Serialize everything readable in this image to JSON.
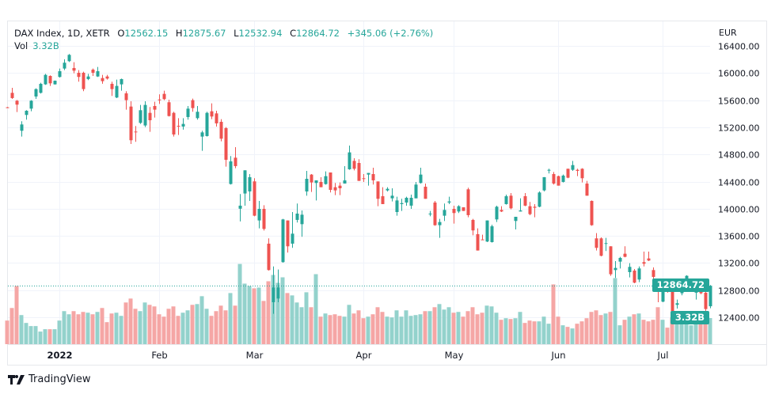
{
  "header": {
    "symbol_line": "DAX Index, 1D, XETR",
    "o_label": "O",
    "o": "12562.15",
    "h_label": "H",
    "h": "12875.67",
    "l_label": "L",
    "l": "12532.94",
    "c_label": "C",
    "c": "12864.72",
    "change": "+345.06 (+2.76%)",
    "vol_label": "Vol",
    "vol": "3.32B"
  },
  "price_axis": {
    "currency": "EUR",
    "last_price": "12864.72",
    "last_volume": "3.32B"
  },
  "footer": {
    "logo_text": "TradingView"
  },
  "chart_data": {
    "type": "candlestick",
    "title": "DAX Index, 1D, XETR",
    "ylabel": "EUR",
    "ylim": [
      12400,
      16400
    ],
    "grid": true,
    "colors": {
      "up": "#26a69a",
      "down": "#ef5350",
      "up_volume": "#93d2cc",
      "down_volume": "#f5a6a5"
    },
    "yticks": [
      "16400.00",
      "16000.00",
      "15600.00",
      "15200.00",
      "14800.00",
      "14400.00",
      "14000.00",
      "13600.00",
      "13200.00",
      "12800.00",
      "12400.00"
    ],
    "xticks": [
      {
        "label": "2022",
        "index": 12,
        "bold": true
      },
      {
        "label": "Feb",
        "index": 33
      },
      {
        "label": "Mar",
        "index": 53
      },
      {
        "label": "Apr",
        "index": 76
      },
      {
        "label": "May",
        "index": 95
      },
      {
        "label": "Jun",
        "index": 117
      },
      {
        "label": "Jul",
        "index": 139
      }
    ],
    "candle_fields": [
      "open",
      "high",
      "low",
      "close",
      "volume_B"
    ],
    "candles": [
      [
        15495,
        15500,
        15485,
        15490,
        3.0
      ],
      [
        15708,
        15782,
        15619,
        15631,
        4.6
      ],
      [
        15592,
        15603,
        15425,
        15534,
        7.4
      ],
      [
        15149,
        15289,
        15063,
        15242,
        3.7
      ],
      [
        15382,
        15452,
        15312,
        15444,
        2.7
      ],
      [
        15475,
        15600,
        15436,
        15592,
        2.3
      ],
      [
        15654,
        15775,
        15619,
        15763,
        2.3
      ],
      [
        15708,
        15856,
        15697,
        15841,
        1.6
      ],
      [
        15833,
        15988,
        15825,
        15973,
        1.9
      ],
      [
        15957,
        15965,
        15810,
        15848,
        1.9
      ],
      [
        15833,
        15890,
        15830,
        15887,
        1.9
      ],
      [
        15942,
        16066,
        15934,
        16027,
        3.0
      ],
      [
        16066,
        16202,
        16043,
        16152,
        4.2
      ],
      [
        16175,
        16280,
        16163,
        16268,
        3.8
      ],
      [
        16074,
        16159,
        15996,
        16035,
        4.2
      ],
      [
        16004,
        16043,
        15872,
        15942,
        3.8
      ],
      [
        16004,
        16019,
        15732,
        15763,
        4.1
      ],
      [
        15911,
        15988,
        15895,
        15949,
        4.0
      ],
      [
        16050,
        16066,
        15957,
        16004,
        3.8
      ],
      [
        15949,
        16089,
        15942,
        16027,
        4.1
      ],
      [
        15926,
        15973,
        15841,
        15880,
        4.6
      ],
      [
        15949,
        15973,
        15903,
        15918,
        2.8
      ],
      [
        15841,
        15872,
        15662,
        15763,
        3.9
      ],
      [
        15639,
        15903,
        15631,
        15810,
        4.0
      ],
      [
        15833,
        15918,
        15740,
        15911,
        3.6
      ],
      [
        15701,
        15732,
        15460,
        15600,
        5.3
      ],
      [
        15506,
        15584,
        14954,
        15009,
        5.8
      ],
      [
        15137,
        15219,
        14986,
        15130,
        4.5
      ],
      [
        15265,
        15530,
        15250,
        15452,
        4.2
      ],
      [
        15227,
        15584,
        15203,
        15530,
        5.3
      ],
      [
        15413,
        15499,
        15133,
        15304,
        5.0
      ],
      [
        15514,
        15576,
        15343,
        15460,
        4.8
      ],
      [
        15610,
        15685,
        15545,
        15607,
        3.8
      ],
      [
        15693,
        15739,
        15600,
        15615,
        3.5
      ],
      [
        15569,
        15607,
        15359,
        15366,
        4.5
      ],
      [
        15413,
        15429,
        15063,
        15094,
        4.8
      ],
      [
        15222,
        15335,
        15087,
        15219,
        3.6
      ],
      [
        15211,
        15335,
        15165,
        15250,
        4.0
      ],
      [
        15351,
        15514,
        15312,
        15475,
        4.3
      ],
      [
        15600,
        15623,
        15429,
        15483,
        5.0
      ],
      [
        15335,
        15514,
        15312,
        15429,
        5.1
      ],
      [
        15063,
        15149,
        14853,
        15125,
        6.1
      ],
      [
        15071,
        15429,
        15063,
        15413,
        4.5
      ],
      [
        15436,
        15553,
        15320,
        15359,
        3.6
      ],
      [
        15405,
        15444,
        15211,
        15258,
        4.2
      ],
      [
        15281,
        15320,
        14993,
        15032,
        4.9
      ],
      [
        15188,
        15203,
        14620,
        14721,
        4.3
      ],
      [
        14364,
        14776,
        14356,
        14698,
        6.5
      ],
      [
        14752,
        14908,
        14597,
        14628,
        4.9
      ],
      [
        14000,
        14216,
        13812,
        14045,
        10.2
      ],
      [
        14224,
        14566,
        14045,
        14566,
        7.7
      ],
      [
        14255,
        14511,
        14115,
        14465,
        7.4
      ],
      [
        14403,
        14449,
        13889,
        13897,
        7.1
      ],
      [
        13827,
        14115,
        13710,
        13998,
        7.2
      ],
      [
        13998,
        14052,
        13679,
        13702,
        5.5
      ],
      [
        13485,
        13563,
        13088,
        13096,
        8.0
      ],
      [
        12622,
        13150,
        12451,
        12840,
        8.8
      ],
      [
        12676,
        13104,
        12622,
        12840,
        7.8
      ],
      [
        13213,
        13850,
        13205,
        13842,
        8.5
      ],
      [
        13827,
        13827,
        13353,
        13446,
        6.5
      ],
      [
        13485,
        13951,
        13423,
        13632,
        6.2
      ],
      [
        13835,
        14076,
        13796,
        13928,
        5.3
      ],
      [
        13772,
        13974,
        13586,
        13912,
        4.7
      ],
      [
        14254,
        14558,
        14192,
        14441,
        6.6
      ],
      [
        14503,
        14511,
        14247,
        14387,
        4.7
      ],
      [
        14379,
        14418,
        14122,
        14418,
        8.9
      ],
      [
        14395,
        14464,
        14317,
        14317,
        3.5
      ],
      [
        14363,
        14550,
        14355,
        14480,
        3.9
      ],
      [
        14534,
        14534,
        14239,
        14278,
        3.7
      ],
      [
        14317,
        14379,
        14200,
        14270,
        3.8
      ],
      [
        14340,
        14387,
        14200,
        14301,
        3.6
      ],
      [
        14371,
        14628,
        14371,
        14418,
        3.5
      ],
      [
        14581,
        14931,
        14573,
        14830,
        5.0
      ],
      [
        14705,
        14744,
        14565,
        14589,
        3.9
      ],
      [
        14674,
        14729,
        14410,
        14410,
        4.3
      ],
      [
        14449,
        14511,
        14394,
        14448,
        3.3
      ],
      [
        14503,
        14527,
        14340,
        14527,
        3.5
      ],
      [
        14511,
        14604,
        14356,
        14418,
        3.8
      ],
      [
        14402,
        14402,
        14037,
        14146,
        4.7
      ],
      [
        14184,
        14317,
        14068,
        14068,
        4.1
      ],
      [
        14270,
        14317,
        14254,
        14293,
        3.5
      ],
      [
        14153,
        14301,
        14107,
        14192,
        3.4
      ],
      [
        13951,
        14177,
        13897,
        14122,
        4.3
      ],
      [
        14068,
        14146,
        13967,
        14083,
        3.5
      ],
      [
        14091,
        14177,
        14045,
        14161,
        4.3
      ],
      [
        14045,
        14208,
        13998,
        14161,
        3.6
      ],
      [
        14153,
        14394,
        14153,
        14356,
        3.7
      ],
      [
        14379,
        14604,
        14371,
        14503,
        3.8
      ],
      [
        14324,
        14371,
        14146,
        14146,
        4.2
      ],
      [
        13920,
        13967,
        13889,
        13928,
        4.2
      ],
      [
        14091,
        14115,
        13749,
        13757,
        4.7
      ],
      [
        13757,
        13850,
        13570,
        13804,
        5.1
      ],
      [
        13897,
        14076,
        13819,
        13982,
        4.4
      ],
      [
        14091,
        14177,
        14068,
        14107,
        4.7
      ],
      [
        13998,
        14045,
        13780,
        13936,
        4.0
      ],
      [
        13959,
        14052,
        13936,
        14037,
        4.1
      ],
      [
        14021,
        14021,
        13967,
        13967,
        3.5
      ],
      [
        14286,
        14309,
        13874,
        13905,
        4.2
      ],
      [
        13835,
        13850,
        13609,
        13680,
        4.7
      ],
      [
        13625,
        13710,
        13384,
        13384,
        3.8
      ],
      [
        13547,
        13617,
        13539,
        13546,
        4.0
      ],
      [
        13516,
        13827,
        13508,
        13827,
        4.9
      ],
      [
        13508,
        13765,
        13500,
        13741,
        4.8
      ],
      [
        13842,
        14045,
        13804,
        14029,
        4.0
      ],
      [
        13982,
        14037,
        13951,
        13959,
        3.1
      ],
      [
        14068,
        14208,
        14060,
        14184,
        3.3
      ],
      [
        14192,
        14231,
        13990,
        14006,
        3.2
      ],
      [
        13819,
        13881,
        13695,
        13881,
        3.3
      ],
      [
        13959,
        14153,
        13959,
        13975,
        4.1
      ],
      [
        14185,
        14231,
        14037,
        14045,
        2.7
      ],
      [
        14037,
        14099,
        13905,
        13920,
        3.0
      ],
      [
        14029,
        14068,
        13874,
        14014,
        2.9
      ],
      [
        14029,
        14255,
        14021,
        14239,
        2.9
      ],
      [
        14270,
        14465,
        14255,
        14465,
        3.5
      ],
      [
        14566,
        14589,
        14519,
        14573,
        2.6
      ],
      [
        14511,
        14542,
        14356,
        14371,
        7.6
      ],
      [
        14480,
        14488,
        14340,
        14340,
        3.5
      ],
      [
        14395,
        14503,
        14387,
        14488,
        2.4
      ],
      [
        14589,
        14589,
        14449,
        14457,
        2.2
      ],
      [
        14573,
        14705,
        14558,
        14643,
        2.0
      ],
      [
        14573,
        14589,
        14480,
        14558,
        2.6
      ],
      [
        14589,
        14597,
        14387,
        14449,
        2.9
      ],
      [
        14371,
        14410,
        14192,
        14192,
        3.3
      ],
      [
        14115,
        14122,
        13749,
        13757,
        4.1
      ],
      [
        13563,
        13640,
        13384,
        13423,
        4.3
      ],
      [
        13563,
        13578,
        13298,
        13306,
        3.7
      ],
      [
        13485,
        13570,
        13376,
        13493,
        3.9
      ],
      [
        13446,
        13446,
        13011,
        13034,
        4.1
      ],
      [
        13096,
        13228,
        12980,
        13127,
        8.4
      ],
      [
        13220,
        13291,
        13119,
        13275,
        2.4
      ],
      [
        13337,
        13446,
        13283,
        13291,
        3.1
      ],
      [
        13065,
        13197,
        12988,
        13143,
        3.5
      ],
      [
        13088,
        13112,
        12902,
        12910,
        3.8
      ],
      [
        12956,
        13150,
        12917,
        13120,
        3.9
      ],
      [
        13213,
        13368,
        13150,
        13189,
        3.1
      ],
      [
        13267,
        13368,
        13228,
        13236,
        2.9
      ],
      [
        13096,
        13135,
        12956,
        12995,
        3.1
      ],
      [
        12793,
        12863,
        12622,
        12778,
        4.7
      ],
      [
        12630,
        12894,
        12622,
        12816,
        3.1
      ],
      [
        12910,
        12917,
        12762,
        12871,
        2.1
      ],
      [
        12855,
        12871,
        12397,
        12404,
        3.4
      ],
      [
        12583,
        12661,
        12529,
        12607,
        3.3
      ],
      [
        12754,
        12863,
        12723,
        12840,
        3.3
      ],
      [
        12816,
        13019,
        12809,
        13011,
        3.2
      ],
      [
        12785,
        12933,
        12778,
        12832,
        2.4
      ],
      [
        12762,
        12917,
        12661,
        12910,
        2.9
      ],
      [
        12809,
        12847,
        12739,
        12754,
        2.9
      ],
      [
        12762,
        12785,
        12443,
        12521,
        3.1
      ],
      [
        12562.15,
        12875.67,
        12532.94,
        12864.72,
        3.32
      ]
    ],
    "last_price": 12864.72
  }
}
